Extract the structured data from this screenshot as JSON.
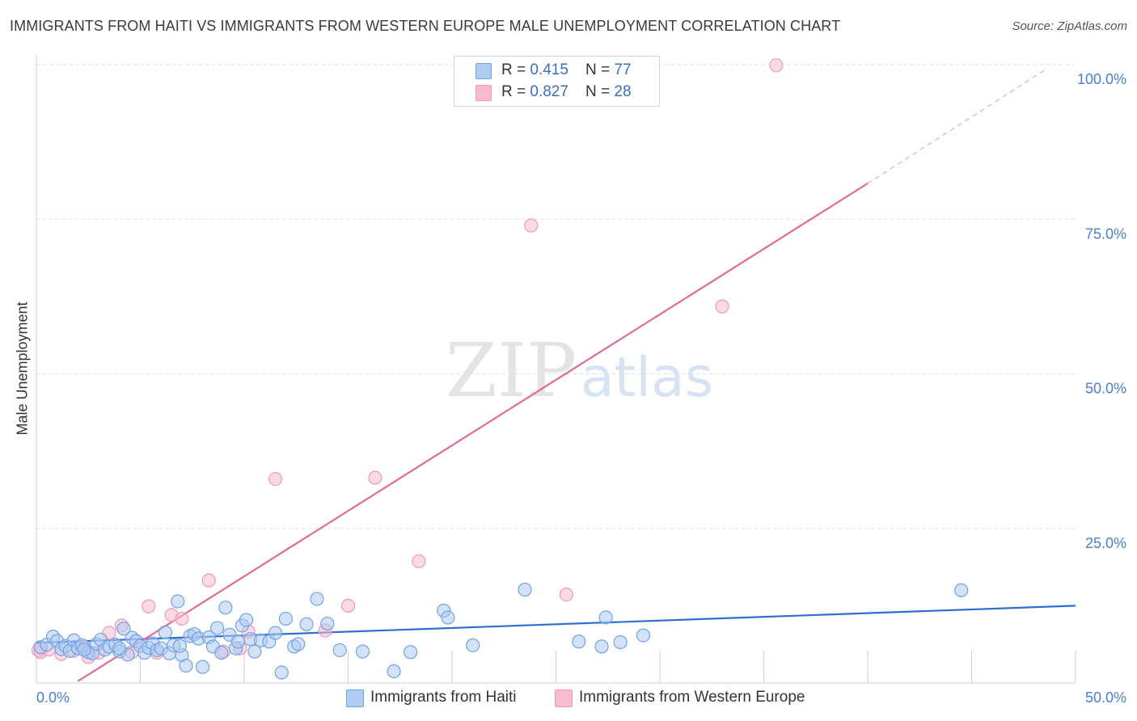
{
  "title": "IMMIGRANTS FROM HAITI VS IMMIGRANTS FROM WESTERN EUROPE MALE UNEMPLOYMENT CORRELATION CHART",
  "source": "Source: ZipAtlas.com",
  "watermark": {
    "zip": "ZIP",
    "atlas": "atlas"
  },
  "legend_top": [
    {
      "r_label": "R = ",
      "r_value": "0.415",
      "n_label": "N = ",
      "n_value": "77",
      "color": "#aecbf1"
    },
    {
      "r_label": "R = ",
      "r_value": "0.827",
      "n_label": "N = ",
      "n_value": "28",
      "color": "#f6bccd"
    }
  ],
  "chart_data": {
    "type": "scatter",
    "ylabel": "Male Unemployment",
    "xlim": [
      0,
      50
    ],
    "ylim": [
      0,
      100
    ],
    "x_tick_labels": [
      "0.0%",
      "50.0%"
    ],
    "y_ticks": [
      25,
      50,
      75,
      100
    ],
    "y_tick_labels": [
      "25.0%",
      "50.0%",
      "75.0%",
      "100.0%"
    ],
    "grid": true,
    "series": [
      {
        "name": "Immigrants from Haiti",
        "color": "#6fa3e6",
        "fill": "#aecbf1",
        "line_color": "#2d6fcf",
        "trend": {
          "x": [
            0,
            50
          ],
          "y": [
            6.5,
            12.5
          ]
        },
        "points": [
          [
            0.2,
            5.8
          ],
          [
            0.5,
            6.2
          ],
          [
            0.8,
            7.5
          ],
          [
            1.0,
            6.8
          ],
          [
            1.2,
            5.5
          ],
          [
            1.4,
            6.0
          ],
          [
            1.6,
            5.2
          ],
          [
            1.8,
            6.9
          ],
          [
            2.0,
            5.6
          ],
          [
            2.2,
            6.1
          ],
          [
            2.5,
            5.0
          ],
          [
            2.7,
            4.8
          ],
          [
            2.9,
            6.3
          ],
          [
            3.1,
            7.0
          ],
          [
            3.3,
            5.4
          ],
          [
            3.5,
            5.9
          ],
          [
            3.8,
            6.2
          ],
          [
            4.0,
            5.1
          ],
          [
            4.2,
            8.8
          ],
          [
            4.4,
            4.6
          ],
          [
            4.6,
            7.3
          ],
          [
            4.8,
            6.8
          ],
          [
            5.0,
            6.0
          ],
          [
            5.2,
            4.9
          ],
          [
            5.4,
            5.7
          ],
          [
            5.6,
            6.4
          ],
          [
            5.8,
            5.3
          ],
          [
            6.0,
            5.6
          ],
          [
            6.2,
            8.2
          ],
          [
            6.4,
            4.8
          ],
          [
            6.6,
            6.1
          ],
          [
            6.8,
            13.2
          ],
          [
            7.0,
            4.5
          ],
          [
            7.2,
            2.8
          ],
          [
            7.4,
            7.6
          ],
          [
            7.6,
            7.9
          ],
          [
            7.8,
            7.2
          ],
          [
            8.0,
            2.6
          ],
          [
            8.3,
            7.4
          ],
          [
            8.5,
            5.9
          ],
          [
            8.7,
            8.9
          ],
          [
            8.9,
            4.9
          ],
          [
            9.1,
            12.2
          ],
          [
            9.3,
            7.8
          ],
          [
            9.6,
            5.6
          ],
          [
            9.9,
            9.3
          ],
          [
            10.1,
            10.2
          ],
          [
            10.3,
            7.1
          ],
          [
            10.5,
            5.1
          ],
          [
            10.8,
            6.9
          ],
          [
            11.2,
            6.7
          ],
          [
            11.5,
            8.1
          ],
          [
            11.8,
            1.7
          ],
          [
            12.0,
            10.4
          ],
          [
            12.4,
            5.9
          ],
          [
            12.6,
            6.3
          ],
          [
            13.0,
            9.5
          ],
          [
            13.5,
            13.6
          ],
          [
            14.0,
            9.6
          ],
          [
            14.6,
            5.3
          ],
          [
            15.7,
            5.1
          ],
          [
            17.2,
            1.9
          ],
          [
            18.0,
            5.0
          ],
          [
            19.6,
            11.7
          ],
          [
            19.8,
            10.6
          ],
          [
            21.0,
            6.1
          ],
          [
            23.5,
            15.1
          ],
          [
            26.1,
            6.7
          ],
          [
            27.2,
            5.9
          ],
          [
            27.4,
            10.6
          ],
          [
            28.1,
            6.6
          ],
          [
            29.2,
            7.7
          ],
          [
            44.5,
            15.0
          ],
          [
            4.0,
            5.6
          ],
          [
            2.3,
            5.4
          ],
          [
            6.9,
            6.0
          ],
          [
            9.7,
            6.7
          ]
        ]
      },
      {
        "name": "Immigrants from Western Europe",
        "color": "#ee9ab2",
        "fill": "#f6bccd",
        "line_color": "#e36b93",
        "trend": {
          "x": [
            2.0,
            40.0
          ],
          "y": [
            0.3,
            80.8
          ]
        },
        "trend_dashed": {
          "x": [
            40.0,
            48.6
          ],
          "y": [
            80.8,
            99.3
          ]
        },
        "points": [
          [
            0.2,
            5.0
          ],
          [
            0.6,
            5.4
          ],
          [
            1.2,
            4.7
          ],
          [
            1.8,
            5.2
          ],
          [
            2.3,
            5.8
          ],
          [
            2.5,
            4.2
          ],
          [
            3.0,
            4.9
          ],
          [
            3.5,
            8.1
          ],
          [
            4.1,
            9.3
          ],
          [
            4.6,
            5.0
          ],
          [
            5.4,
            12.4
          ],
          [
            5.8,
            4.9
          ],
          [
            6.5,
            11.0
          ],
          [
            7.0,
            10.4
          ],
          [
            8.3,
            16.6
          ],
          [
            9.0,
            5.1
          ],
          [
            9.8,
            5.6
          ],
          [
            10.2,
            8.3
          ],
          [
            11.5,
            33.0
          ],
          [
            13.9,
            8.5
          ],
          [
            15.0,
            12.5
          ],
          [
            16.3,
            33.2
          ],
          [
            18.4,
            19.7
          ],
          [
            23.8,
            74.0
          ],
          [
            25.5,
            14.3
          ],
          [
            33.0,
            60.9
          ],
          [
            35.6,
            99.9
          ],
          [
            0.1,
            5.3
          ]
        ]
      }
    ]
  },
  "bottom_legend": [
    {
      "label": "Immigrants from Haiti",
      "color": "#aecbf1"
    },
    {
      "label": "Immigrants from Western Europe",
      "color": "#f6bccd"
    }
  ]
}
